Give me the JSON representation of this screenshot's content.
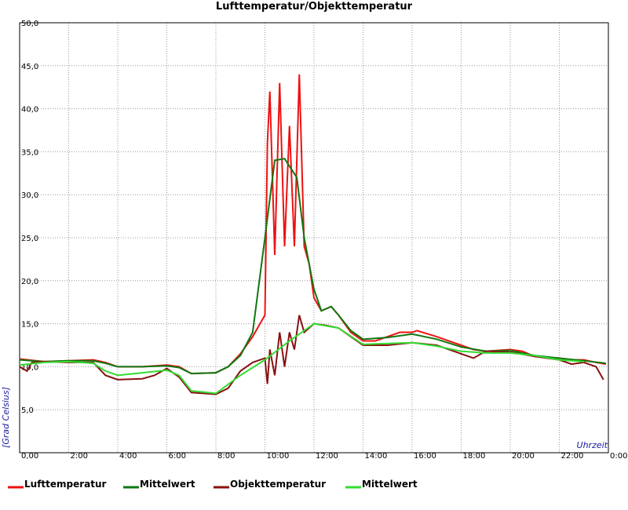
{
  "chart_data": {
    "type": "line",
    "title": "Lufttemperatur/Objekttemperatur",
    "ylabel": "[Grad Celsius]",
    "xlabel": "Uhrzeit",
    "xlim": [
      0,
      24
    ],
    "ylim": [
      0,
      50
    ],
    "grid": true,
    "legend": "bottom",
    "xticks": [
      {
        "value": 0,
        "label": "0,00"
      },
      {
        "value": 2,
        "label": "2:00"
      },
      {
        "value": 4,
        "label": "4:00"
      },
      {
        "value": 6,
        "label": "6:00"
      },
      {
        "value": 8,
        "label": "8:00"
      },
      {
        "value": 10,
        "label": "10:00"
      },
      {
        "value": 12,
        "label": "12:00"
      },
      {
        "value": 14,
        "label": "14:00"
      },
      {
        "value": 16,
        "label": "16:00"
      },
      {
        "value": 18,
        "label": "18:00"
      },
      {
        "value": 20,
        "label": "20:00"
      },
      {
        "value": 22,
        "label": "22:00"
      },
      {
        "value": 24,
        "label": "0:00"
      }
    ],
    "yticks": [
      {
        "value": 5,
        "label": "5,0"
      },
      {
        "value": 10,
        "label": "10,0"
      },
      {
        "value": 15,
        "label": "15,0"
      },
      {
        "value": 20,
        "label": "20,0"
      },
      {
        "value": 25,
        "label": "25,0"
      },
      {
        "value": 30,
        "label": "30,0"
      },
      {
        "value": 35,
        "label": "35,0"
      },
      {
        "value": 40,
        "label": "40,0"
      },
      {
        "value": 45,
        "label": "45,0"
      },
      {
        "value": 50,
        "label": "50,0"
      }
    ],
    "series": [
      {
        "name": "Lufttemperatur",
        "color": "#ee1111",
        "x": [
          0,
          1,
          2,
          3,
          3.5,
          4,
          5,
          6,
          6.5,
          7,
          8,
          8.5,
          9,
          9.5,
          10,
          10.1,
          10.2,
          10.4,
          10.6,
          10.8,
          11,
          11.2,
          11.4,
          11.6,
          11.8,
          12,
          12.3,
          12.7,
          13,
          13.5,
          14,
          14.5,
          15,
          15.5,
          16,
          16.2,
          17,
          17.5,
          18,
          18.5,
          19,
          20,
          20.5,
          21,
          22,
          22.5,
          23,
          23.5,
          23.9
        ],
        "values": [
          10.9,
          10.6,
          10.7,
          10.8,
          10.5,
          10,
          10,
          10.2,
          10,
          9.2,
          9.3,
          10,
          11.5,
          13.5,
          16,
          36,
          42,
          23,
          43,
          24,
          38,
          24,
          44,
          24,
          22,
          18,
          16.5,
          17,
          16,
          14,
          13,
          13,
          13.5,
          14,
          14,
          14.2,
          13.5,
          13,
          12.5,
          12,
          11.8,
          12,
          11.8,
          11.2,
          11,
          10.8,
          10.8,
          10.5,
          10.3
        ]
      },
      {
        "name": "Mittelwert",
        "color": "#117711",
        "x": [
          0,
          1,
          2,
          3,
          3.5,
          4,
          5,
          6,
          6.5,
          7,
          8,
          8.5,
          9,
          9.5,
          10,
          10.4,
          10.8,
          11.3,
          11.6,
          12,
          12.3,
          12.7,
          13,
          13.5,
          14,
          15,
          16,
          17,
          18,
          19,
          20,
          21,
          22,
          23,
          23.9
        ],
        "values": [
          10.8,
          10.6,
          10.7,
          10.7,
          10.4,
          10,
          10,
          10.1,
          9.9,
          9.2,
          9.3,
          10,
          11.3,
          14,
          25,
          34,
          34.2,
          32,
          25,
          19,
          16.5,
          17,
          16,
          14.2,
          13.2,
          13.4,
          13.8,
          13.2,
          12.3,
          11.8,
          11.9,
          11.3,
          11,
          10.7,
          10.4
        ]
      },
      {
        "name": "Objekttemperatur",
        "color": "#881111",
        "x": [
          0,
          0.3,
          0.5,
          1,
          2,
          3,
          3.5,
          4,
          5,
          5.5,
          6,
          6.5,
          7,
          8,
          8.5,
          9,
          9.5,
          10,
          10.1,
          10.2,
          10.4,
          10.6,
          10.8,
          11,
          11.2,
          11.4,
          11.6,
          12,
          12.5,
          13,
          13.5,
          14,
          15,
          16,
          17,
          17.5,
          18,
          18.5,
          19,
          20,
          21,
          22,
          22.5,
          23,
          23.5,
          23.8
        ],
        "values": [
          10,
          9.5,
          10.5,
          10.6,
          10.5,
          10.5,
          9,
          8.5,
          8.6,
          9,
          9.8,
          8.8,
          7,
          6.8,
          7.5,
          9.5,
          10.5,
          11,
          8,
          12,
          9,
          14,
          10,
          14,
          12,
          16,
          14,
          15,
          14.8,
          14.5,
          13.5,
          12.5,
          12.5,
          12.8,
          12.5,
          12,
          11.5,
          11,
          11.8,
          11.7,
          11.2,
          10.8,
          10.3,
          10.5,
          10,
          8.5
        ]
      },
      {
        "name": "Mittelwert",
        "color": "#33dd33",
        "x": [
          0,
          1,
          2,
          3,
          3.5,
          4,
          5,
          6,
          6.5,
          7,
          8,
          9,
          10,
          11,
          12,
          13,
          14,
          16,
          17,
          18,
          19,
          20,
          21,
          22,
          23
        ],
        "values": [
          10.2,
          10.5,
          10.6,
          10.4,
          9.5,
          9,
          9.3,
          9.6,
          9,
          7.2,
          6.9,
          9,
          10.8,
          13,
          15,
          14.5,
          12.6,
          12.8,
          12.4,
          11.8,
          11.6,
          11.6,
          11.3,
          10.8,
          10.6
        ]
      }
    ]
  }
}
